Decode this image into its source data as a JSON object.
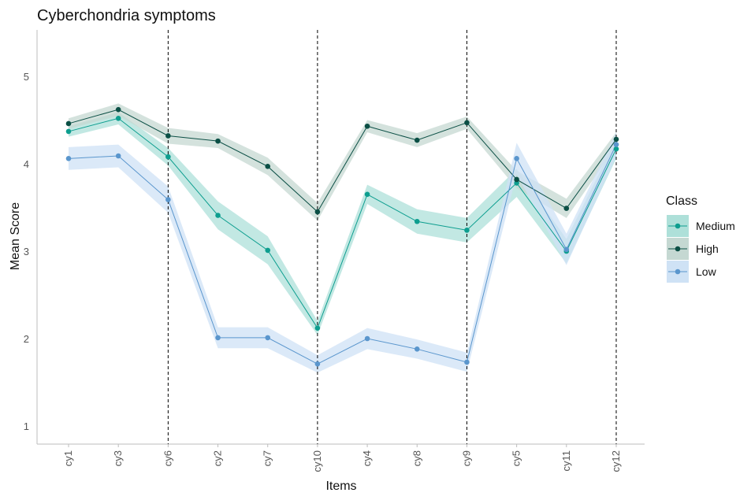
{
  "chart_data": {
    "type": "line",
    "title": "Cyberchondria symptoms",
    "xlabel": "Items",
    "ylabel": "Mean Score",
    "categories": [
      "cy1",
      "cy3",
      "cy6",
      "cy2",
      "cy7",
      "cy10",
      "cy4",
      "cy8",
      "cy9",
      "cy5",
      "cy11",
      "cy12"
    ],
    "ylim": [
      0.8,
      5.5
    ],
    "yticks": [
      1,
      2,
      3,
      4,
      5
    ],
    "vlines_at": [
      "cy6",
      "cy10",
      "cy9",
      "cy12"
    ],
    "grid": false,
    "legend": {
      "title": "Class",
      "position": "right"
    },
    "series": [
      {
        "name": "Medium",
        "color": "#0d9e8f",
        "band_color": "#aee0d9",
        "values": [
          4.37,
          4.52,
          4.08,
          3.41,
          3.01,
          2.12,
          3.65,
          3.34,
          3.24,
          3.78,
          3.0,
          4.17
        ],
        "band_lower": [
          4.31,
          4.45,
          3.98,
          3.25,
          2.85,
          2.04,
          3.54,
          3.2,
          3.1,
          3.62,
          2.86,
          4.06
        ],
        "band_upper": [
          4.43,
          4.59,
          4.18,
          3.57,
          3.17,
          2.2,
          3.76,
          3.48,
          3.38,
          3.94,
          3.14,
          4.28
        ]
      },
      {
        "name": "High",
        "color": "#0b4f45",
        "band_color": "#c5d8d2",
        "values": [
          4.46,
          4.62,
          4.32,
          4.26,
          3.97,
          3.45,
          4.43,
          4.27,
          4.47,
          3.82,
          3.49,
          4.28
        ],
        "band_lower": [
          4.4,
          4.55,
          4.23,
          4.18,
          3.87,
          3.35,
          4.36,
          4.19,
          4.4,
          3.72,
          3.38,
          4.2
        ],
        "band_upper": [
          4.52,
          4.69,
          4.41,
          4.34,
          4.07,
          3.55,
          4.5,
          4.35,
          4.54,
          3.92,
          3.6,
          4.36
        ]
      },
      {
        "name": "Low",
        "color": "#5a96cd",
        "band_color": "#cfe2f5",
        "values": [
          4.06,
          4.09,
          3.59,
          2.01,
          2.01,
          1.71,
          2.0,
          1.88,
          1.73,
          4.06,
          3.02,
          4.22
        ],
        "band_lower": [
          3.93,
          3.96,
          3.44,
          1.89,
          1.89,
          1.61,
          1.88,
          1.77,
          1.62,
          3.88,
          2.84,
          4.08
        ],
        "band_upper": [
          4.19,
          4.22,
          3.74,
          2.13,
          2.13,
          1.81,
          2.12,
          1.99,
          1.84,
          4.24,
          3.2,
          4.36
        ]
      }
    ]
  }
}
